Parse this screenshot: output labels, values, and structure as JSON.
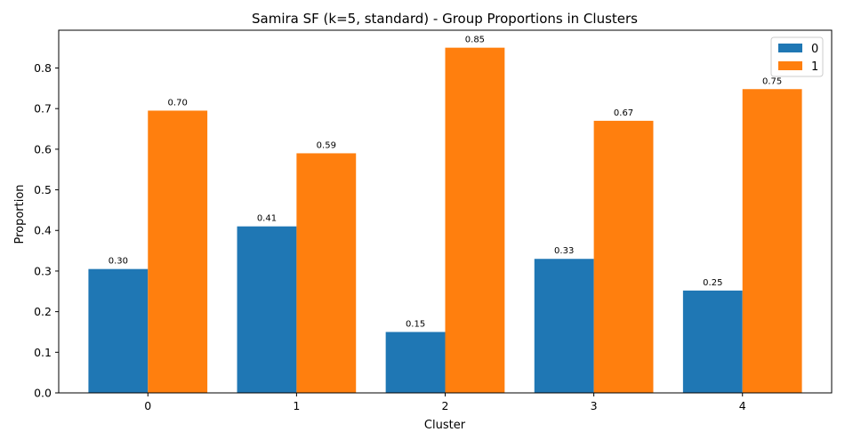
{
  "chart_data": {
    "type": "bar",
    "title": "Samira SF (k=5, standard) - Group Proportions in Clusters",
    "xlabel": "Cluster",
    "ylabel": "Proportion",
    "categories": [
      "0",
      "1",
      "2",
      "3",
      "4"
    ],
    "series": [
      {
        "name": "0",
        "color": "#1f77b4",
        "values": [
          0.305,
          0.41,
          0.15,
          0.33,
          0.252
        ],
        "labels": [
          "0.30",
          "0.41",
          "0.15",
          "0.33",
          "0.25"
        ]
      },
      {
        "name": "1",
        "color": "#ff7f0e",
        "values": [
          0.695,
          0.59,
          0.85,
          0.67,
          0.748
        ],
        "labels": [
          "0.70",
          "0.59",
          "0.85",
          "0.67",
          "0.75"
        ]
      }
    ],
    "ylim": [
      0,
      0.893
    ],
    "yticks": [
      0.0,
      0.1,
      0.2,
      0.3,
      0.4,
      0.5,
      0.6,
      0.7,
      0.8
    ],
    "ytick_labels": [
      "0.0",
      "0.1",
      "0.2",
      "0.3",
      "0.4",
      "0.5",
      "0.6",
      "0.7",
      "0.8"
    ],
    "grid": false,
    "legend_position": "top-right"
  }
}
